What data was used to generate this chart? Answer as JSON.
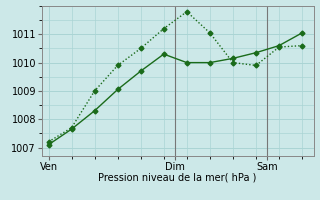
{
  "title": "",
  "xlabel": "Pression niveau de la mer( hPa )",
  "ylabel": "",
  "bg_color": "#cce8e8",
  "grid_color": "#aad4d4",
  "line_color": "#1a6b1a",
  "line1_x": [
    0,
    1,
    2,
    3,
    4,
    5,
    6,
    7,
    8,
    9,
    10,
    11
  ],
  "line1_y": [
    1007.2,
    1007.7,
    1009.0,
    1009.9,
    1010.5,
    1011.2,
    1011.8,
    1011.05,
    1010.0,
    1009.9,
    1010.55,
    1010.6
  ],
  "line2_x": [
    0,
    1,
    2,
    3,
    4,
    5,
    6,
    7,
    8,
    9,
    10,
    11
  ],
  "line2_y": [
    1007.1,
    1007.65,
    1008.3,
    1009.05,
    1009.7,
    1010.3,
    1010.0,
    1010.0,
    1010.15,
    1010.35,
    1010.6,
    1011.05
  ],
  "ylim": [
    1006.7,
    1012.0
  ],
  "yticks": [
    1007,
    1008,
    1009,
    1010,
    1011
  ],
  "xtick_positions": [
    0,
    5.5,
    9.5
  ],
  "xtick_labels": [
    "Ven",
    "Dim",
    "Sam"
  ],
  "vlines": [
    5.5,
    9.5
  ],
  "marker": "D",
  "markersize": 2.5,
  "linewidth": 1.0,
  "font_size": 7,
  "xlabel_font_size": 7
}
